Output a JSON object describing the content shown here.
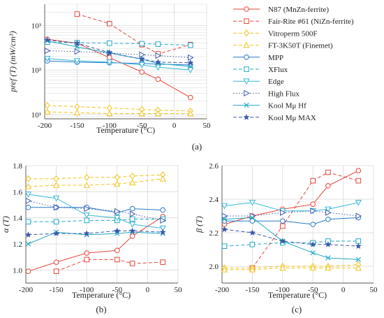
{
  "colors": {
    "red": "#e8433a",
    "yellow": "#f2c21a",
    "blue": "#2878c8",
    "cyan": "#22a7c4",
    "lightblue": "#35b6d6",
    "navy": "#3a5aa8",
    "grid": "#d9d9d9"
  },
  "panel_labels": {
    "a": "(a)",
    "b": "(b)",
    "c": "(c)"
  },
  "chart_data": [
    {
      "id": "a",
      "type": "line",
      "xlabel": "Temperature (°C)",
      "ylabel": "pref (T) (mW/cm³)",
      "yscale": "log",
      "xlim": [
        -200,
        50
      ],
      "ylim": [
        8,
        3000
      ],
      "xticks": [
        -200,
        -150,
        -100,
        -50,
        0,
        50
      ],
      "yticks": [
        10,
        100,
        1000
      ],
      "ytick_labels": [
        "10¹",
        "10²",
        "10³"
      ],
      "legend": "right",
      "series": [
        {
          "name": "N87 (MnZn-ferrite)",
          "color": "red",
          "dash": "solid",
          "marker": "circle",
          "x": [
            -196,
            -150,
            -100,
            -50,
            -25,
            25
          ],
          "y": [
            490,
            400,
            190,
            90,
            62,
            24
          ]
        },
        {
          "name": "Fair-Rite #61 (NiZn-ferrite)",
          "color": "red",
          "dash": "dashed",
          "marker": "square",
          "x": [
            -150,
            -100,
            -50,
            -25,
            25
          ],
          "y": [
            1800,
            1100,
            370,
            230,
            370
          ]
        },
        {
          "name": "Vitroperm 500F",
          "color": "yellow",
          "dash": "dashed",
          "marker": "diamond",
          "x": [
            -196,
            -150,
            -100,
            -50,
            -25,
            25
          ],
          "y": [
            16,
            15,
            14,
            13,
            12.5,
            12
          ]
        },
        {
          "name": "FT-3K50T (Finemet)",
          "color": "yellow",
          "dash": "dashed",
          "marker": "triangle-up",
          "x": [
            -196,
            -150,
            -100,
            -50,
            -25,
            25
          ],
          "y": [
            11.5,
            11,
            10.5,
            10.5,
            10.5,
            10.5
          ]
        },
        {
          "name": "MPP",
          "color": "blue",
          "dash": "solid",
          "marker": "circle",
          "x": [
            -196,
            -150,
            -100,
            -50,
            -25,
            25
          ],
          "y": [
            160,
            150,
            145,
            140,
            135,
            130
          ]
        },
        {
          "name": "XFlux",
          "color": "cyan",
          "dash": "dashed",
          "marker": "square",
          "x": [
            -196,
            -150,
            -100,
            -50,
            -25,
            25
          ],
          "y": [
            420,
            410,
            400,
            390,
            380,
            360
          ]
        },
        {
          "name": "Edge",
          "color": "lightblue",
          "dash": "solid",
          "marker": "triangle-down",
          "x": [
            -196,
            -150,
            -100,
            -50,
            -25,
            25
          ],
          "y": [
            180,
            160,
            150,
            130,
            115,
            100
          ]
        },
        {
          "name": "High Flux",
          "color": "navy",
          "dash": "dotted",
          "marker": "triangle-right",
          "x": [
            -196,
            -150,
            -100,
            -50,
            -25,
            25
          ],
          "y": [
            270,
            260,
            240,
            220,
            210,
            190
          ]
        },
        {
          "name": "Kool Mμ Hf",
          "color": "cyan",
          "dash": "solid",
          "marker": "cross",
          "x": [
            -196,
            -150,
            -100,
            -50,
            -25,
            25
          ],
          "y": [
            450,
            330,
            240,
            175,
            140,
            120
          ]
        },
        {
          "name": "Kool Mμ MAX",
          "color": "navy",
          "dash": "dashed",
          "marker": "star",
          "x": [
            -196,
            -150,
            -100,
            -50,
            -25,
            25
          ],
          "y": [
            470,
            400,
            245,
            175,
            150,
            145
          ]
        }
      ]
    },
    {
      "id": "b",
      "type": "line",
      "xlabel": "Temperature (°C)",
      "ylabel": "α (T)",
      "xlim": [
        -200,
        50
      ],
      "ylim": [
        0.9,
        1.8
      ],
      "xticks": [
        -200,
        -150,
        -100,
        -50,
        0,
        50
      ],
      "yticks": [
        1.0,
        1.2,
        1.4,
        1.6,
        1.8
      ],
      "ytick_labels": [
        "1.0",
        "1.2",
        "1.4",
        "1.6",
        "1.8"
      ],
      "series": [
        {
          "color": "red",
          "dash": "solid",
          "marker": "circle",
          "x": [
            -196,
            -150,
            -100,
            -50,
            -25,
            25
          ],
          "y": [
            0.99,
            1.06,
            1.13,
            1.15,
            1.26,
            1.41
          ]
        },
        {
          "color": "red",
          "dash": "dashed",
          "marker": "square",
          "x": [
            -150,
            -100,
            -50,
            -25,
            25
          ],
          "y": [
            0.99,
            1.08,
            1.08,
            1.05,
            1.06
          ]
        },
        {
          "color": "yellow",
          "dash": "dashed",
          "marker": "diamond",
          "x": [
            -196,
            -150,
            -100,
            -50,
            -25,
            25
          ],
          "y": [
            1.7,
            1.7,
            1.71,
            1.71,
            1.72,
            1.73
          ]
        },
        {
          "color": "yellow",
          "dash": "dashed",
          "marker": "triangle-up",
          "x": [
            -196,
            -150,
            -100,
            -50,
            -25,
            25
          ],
          "y": [
            1.64,
            1.65,
            1.65,
            1.66,
            1.67,
            1.7
          ]
        },
        {
          "color": "blue",
          "dash": "solid",
          "marker": "circle",
          "x": [
            -196,
            -150,
            -100,
            -50,
            -25,
            25
          ],
          "y": [
            1.48,
            1.48,
            1.48,
            1.44,
            1.47,
            1.46
          ]
        },
        {
          "color": "cyan",
          "dash": "dashed",
          "marker": "square",
          "x": [
            -196,
            -150,
            -100,
            -50,
            -25,
            25
          ],
          "y": [
            1.37,
            1.37,
            1.38,
            1.38,
            1.39,
            1.39
          ]
        },
        {
          "color": "lightblue",
          "dash": "solid",
          "marker": "triangle-down",
          "x": [
            -196,
            -150,
            -100,
            -50,
            -25,
            25
          ],
          "y": [
            1.58,
            1.55,
            1.42,
            1.4,
            1.35,
            1.32
          ]
        },
        {
          "color": "navy",
          "dash": "dotted",
          "marker": "triangle-right",
          "x": [
            -196,
            -150,
            -100,
            -50,
            -25,
            25
          ],
          "y": [
            1.53,
            1.48,
            1.47,
            1.45,
            1.43,
            1.38
          ]
        },
        {
          "color": "cyan",
          "dash": "solid",
          "marker": "cross",
          "x": [
            -196,
            -150,
            -100,
            -50,
            -25,
            25
          ],
          "y": [
            1.2,
            1.29,
            1.27,
            1.28,
            1.29,
            1.28
          ]
        },
        {
          "color": "navy",
          "dash": "dashed",
          "marker": "star",
          "x": [
            -196,
            -150,
            -100,
            -50,
            -25,
            25
          ],
          "y": [
            1.27,
            1.28,
            1.28,
            1.3,
            1.3,
            1.29
          ]
        }
      ]
    },
    {
      "id": "c",
      "type": "line",
      "xlabel": "Temperature (°C)",
      "ylabel": "β (T)",
      "xlim": [
        -200,
        50
      ],
      "ylim": [
        1.9,
        2.6
      ],
      "xticks": [
        -200,
        -150,
        -100,
        -50,
        0,
        50
      ],
      "yticks": [
        2.0,
        2.2,
        2.4,
        2.6
      ],
      "ytick_labels": [
        "2.0",
        "2.2",
        "2.4",
        "2.6"
      ],
      "series": [
        {
          "color": "red",
          "dash": "solid",
          "marker": "circle",
          "x": [
            -196,
            -150,
            -100,
            -50,
            -25,
            25
          ],
          "y": [
            2.25,
            2.3,
            2.34,
            2.37,
            2.48,
            2.57
          ]
        },
        {
          "color": "red",
          "dash": "dashed",
          "marker": "square",
          "x": [
            -150,
            -100,
            -50,
            -25,
            25
          ],
          "y": [
            1.99,
            2.24,
            2.51,
            2.56,
            2.51
          ]
        },
        {
          "color": "yellow",
          "dash": "dashed",
          "marker": "diamond",
          "x": [
            -196,
            -150,
            -100,
            -50,
            -25,
            25
          ],
          "y": [
            1.99,
            1.99,
            2.0,
            2.0,
            2.0,
            2.01
          ]
        },
        {
          "color": "yellow",
          "dash": "dashed",
          "marker": "triangle-up",
          "x": [
            -196,
            -150,
            -100,
            -50,
            -25,
            25
          ],
          "y": [
            1.98,
            1.98,
            1.99,
            1.99,
            1.99,
            1.99
          ]
        },
        {
          "color": "blue",
          "dash": "solid",
          "marker": "circle",
          "x": [
            -196,
            -150,
            -100,
            -50,
            -25,
            25
          ],
          "y": [
            2.27,
            2.27,
            2.27,
            2.25,
            2.28,
            2.29
          ]
        },
        {
          "color": "cyan",
          "dash": "dashed",
          "marker": "square",
          "x": [
            -196,
            -150,
            -100,
            -50,
            -25,
            25
          ],
          "y": [
            2.12,
            2.13,
            2.14,
            2.14,
            2.15,
            2.15
          ]
        },
        {
          "color": "lightblue",
          "dash": "solid",
          "marker": "triangle-down",
          "x": [
            -196,
            -150,
            -100,
            -50,
            -25,
            25
          ],
          "y": [
            2.36,
            2.38,
            2.33,
            2.33,
            2.34,
            2.38
          ]
        },
        {
          "color": "navy",
          "dash": "dotted",
          "marker": "triangle-right",
          "x": [
            -196,
            -150,
            -100,
            -50,
            -25,
            25
          ],
          "y": [
            2.3,
            2.3,
            2.32,
            2.33,
            2.32,
            2.3
          ]
        },
        {
          "color": "cyan",
          "dash": "solid",
          "marker": "cross",
          "x": [
            -196,
            -150,
            -100,
            -50,
            -25,
            25
          ],
          "y": [
            2.28,
            2.29,
            2.15,
            2.08,
            2.05,
            2.04
          ]
        },
        {
          "color": "navy",
          "dash": "dashed",
          "marker": "star",
          "x": [
            -196,
            -150,
            -100,
            -50,
            -25,
            25
          ],
          "y": [
            2.22,
            2.2,
            2.15,
            2.13,
            2.13,
            2.12
          ]
        }
      ]
    }
  ]
}
